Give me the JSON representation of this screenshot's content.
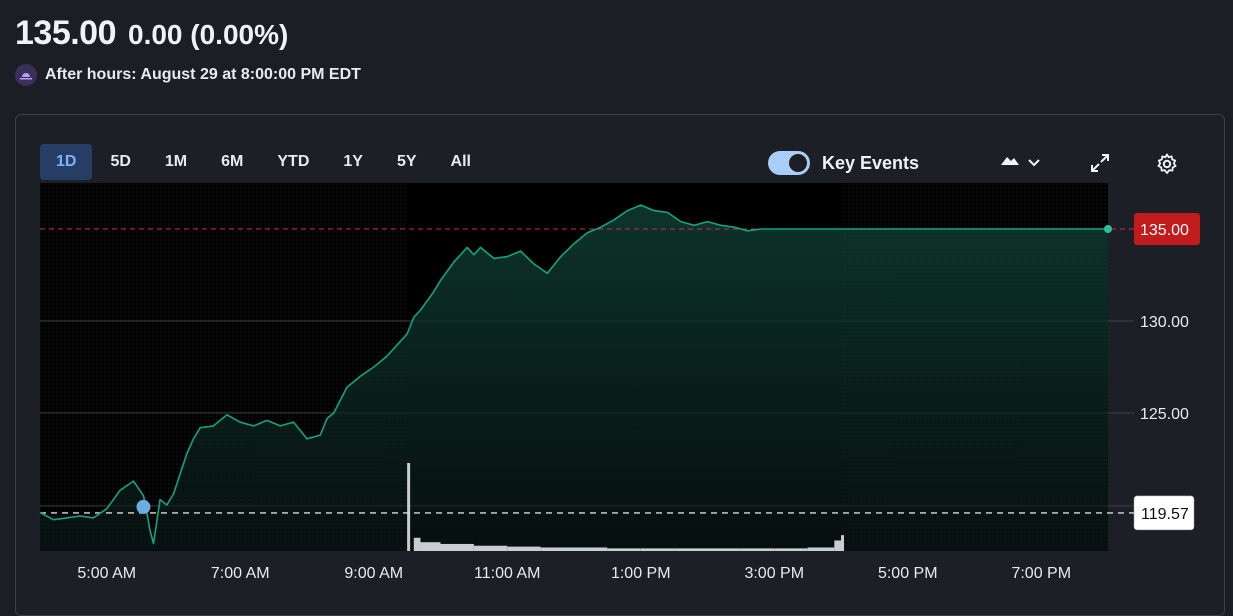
{
  "quote": {
    "price": "135.00",
    "change": "0.00 (0.00%)",
    "after_hours": "After hours: August 29 at 8:00:00 PM EDT"
  },
  "tabs": [
    {
      "label": "1D",
      "active": true
    },
    {
      "label": "5D",
      "active": false
    },
    {
      "label": "1M",
      "active": false
    },
    {
      "label": "6M",
      "active": false
    },
    {
      "label": "YTD",
      "active": false
    },
    {
      "label": "1Y",
      "active": false
    },
    {
      "label": "5Y",
      "active": false
    },
    {
      "label": "All",
      "active": false
    }
  ],
  "controls": {
    "key_events_label": "Key Events",
    "key_events_on": true,
    "chart_type_icon": "mountain-icon",
    "expand_icon": "expand-icon",
    "settings_icon": "gear-icon"
  },
  "colors": {
    "accent": "#2bbfa0",
    "line": "#12a37f",
    "last_price_badge": "#c21b1b",
    "prev_close_badge": "#ffffff",
    "tab_active_bg": "#263e66"
  },
  "chart_data": {
    "type": "area",
    "title": "",
    "xlabel": "",
    "ylabel": "",
    "ylim": [
      117.5,
      137.5
    ],
    "y_ticks": [
      "125.00",
      "130.00",
      "135.00"
    ],
    "x_ticks": [
      "5:00 AM",
      "7:00 AM",
      "9:00 AM",
      "11:00 AM",
      "1:00 PM",
      "3:00 PM",
      "5:00 PM",
      "7:00 PM"
    ],
    "x_start_hour": 4.0,
    "x_end_hour": 20.0,
    "last_price_label": "135.00",
    "previous_close": 119.57,
    "previous_close_label": "119.57",
    "premarket_end_hour": 9.5,
    "regular_end_hour": 16.0,
    "series": [
      {
        "values_hour": [
          4.0,
          4.2,
          4.4,
          4.6,
          4.8,
          5.0,
          5.2,
          5.4,
          5.55,
          5.6,
          5.65,
          5.7,
          5.8,
          5.9,
          6.0,
          6.2,
          6.3,
          6.4,
          6.6,
          6.8,
          7.0,
          7.2,
          7.4,
          7.6,
          7.8,
          8.0,
          8.2,
          8.3,
          8.4,
          8.6,
          8.8,
          9.0,
          9.2,
          9.4,
          9.5,
          9.6,
          9.7,
          9.8,
          9.9,
          10.0,
          10.2,
          10.4,
          10.5,
          10.6,
          10.8,
          11.0,
          11.2,
          11.4,
          11.6,
          11.8,
          12.0,
          12.2,
          12.4,
          12.6,
          12.8,
          13.0,
          13.2,
          13.4,
          13.6,
          13.8,
          14.0,
          14.2,
          14.4,
          14.6,
          14.8,
          15.0,
          15.5,
          16.0,
          17.0,
          18.0,
          19.0,
          20.0
        ],
        "values": [
          119.6,
          119.2,
          119.3,
          119.4,
          119.3,
          119.8,
          120.8,
          121.3,
          120.5,
          119.6,
          118.6,
          117.9,
          120.3,
          120.0,
          120.6,
          122.8,
          123.6,
          124.2,
          124.3,
          124.9,
          124.5,
          124.3,
          124.6,
          124.3,
          124.5,
          123.6,
          123.8,
          124.7,
          125.0,
          126.4,
          127.0,
          127.5,
          128.1,
          128.9,
          129.3,
          130.2,
          130.6,
          131.1,
          131.6,
          132.2,
          133.2,
          134.0,
          133.6,
          134.0,
          133.4,
          133.5,
          133.8,
          133.1,
          132.6,
          133.5,
          134.2,
          134.8,
          135.1,
          135.5,
          136.0,
          136.3,
          136.0,
          135.9,
          135.4,
          135.2,
          135.4,
          135.2,
          135.1,
          134.9,
          135.0,
          135.0,
          135.0,
          135.0,
          135.0,
          135.0,
          135.0,
          135.0
        ]
      }
    ],
    "volume": {
      "hours": [
        9.5,
        9.6,
        9.7,
        10.0,
        10.5,
        11.0,
        11.5,
        12.0,
        12.5,
        13.0,
        13.5,
        14.0,
        14.5,
        15.0,
        15.5,
        15.9,
        16.0
      ],
      "values": [
        1.0,
        0.15,
        0.1,
        0.08,
        0.06,
        0.05,
        0.04,
        0.04,
        0.03,
        0.03,
        0.03,
        0.03,
        0.03,
        0.03,
        0.04,
        0.12,
        0.18
      ]
    }
  }
}
